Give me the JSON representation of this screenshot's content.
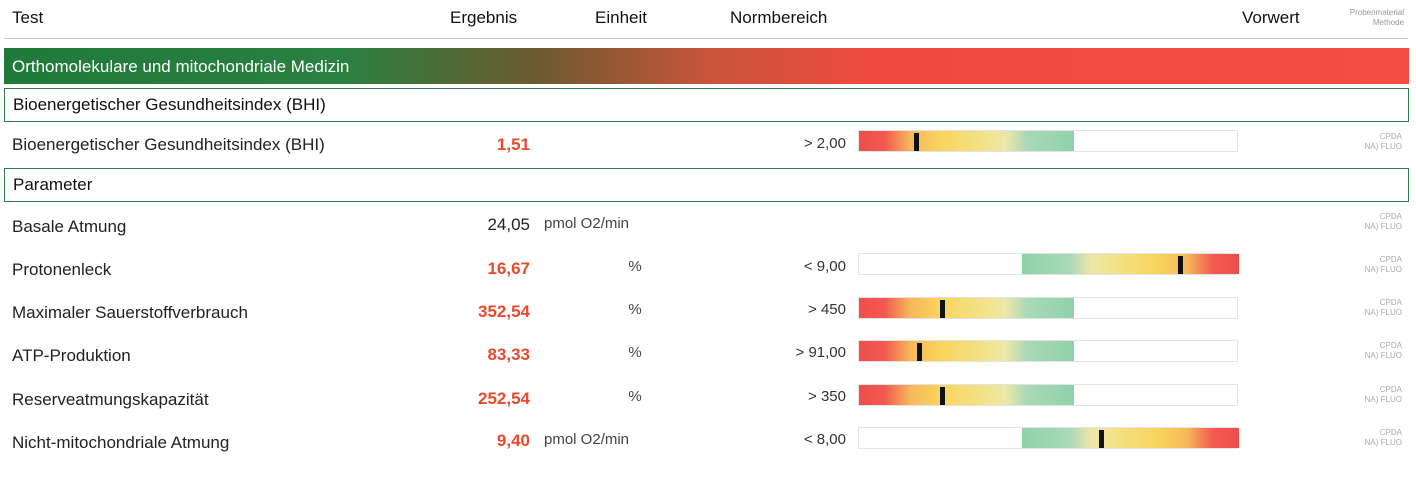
{
  "header": {
    "test": "Test",
    "ergebnis": "Ergebnis",
    "einheit": "Einheit",
    "normbereich": "Normbereich",
    "vorwert": "Vorwert",
    "material_line1": "Probenmaterial",
    "material_line2": "Methode"
  },
  "section": {
    "title": "Orthomolekulare und mitochondriale Medizin"
  },
  "groups": [
    {
      "title": "Bioenergetischer Gesundheitsindex (BHI)"
    },
    {
      "title": "Parameter"
    }
  ],
  "rows": [
    {
      "name": "Bioenergetischer Gesundheitsindex (BHI)",
      "result": "1,51",
      "flag": "high",
      "unit": "",
      "ref": "> 2,00",
      "scale": "low",
      "marker_fraction": 0.15,
      "method1": "CPDA",
      "method2": "NA) FLUO"
    },
    {
      "name": "Basale Atmung",
      "result": "24,05",
      "flag": "normal",
      "unit": "pmol O2/min",
      "ref": "",
      "scale": "none",
      "marker_fraction": null,
      "method1": "CPDA",
      "method2": "NA) FLUO"
    },
    {
      "name": "Protonenleck",
      "result": "16,67",
      "flag": "high",
      "unit": "%",
      "ref": "< 9,00",
      "scale": "high",
      "marker_fraction": 0.85,
      "method1": "CPDA",
      "method2": "NA) FLUO"
    },
    {
      "name": "Maximaler Sauerstoffverbrauch",
      "result": "352,54",
      "flag": "high",
      "unit": "%",
      "ref": "> 450",
      "scale": "low",
      "marker_fraction": 0.22,
      "method1": "CPDA",
      "method2": "NA) FLUO"
    },
    {
      "name": "ATP-Produktion",
      "result": "83,33",
      "flag": "high",
      "unit": "%",
      "ref": "> 91,00",
      "scale": "low",
      "marker_fraction": 0.16,
      "method1": "CPDA",
      "method2": "NA) FLUO"
    },
    {
      "name": "Reserveatmungskapazität",
      "result": "252,54",
      "flag": "high",
      "unit": "%",
      "ref": "> 350",
      "scale": "low",
      "marker_fraction": 0.22,
      "method1": "CPDA",
      "method2": "NA) FLUO"
    },
    {
      "name": "Nicht-mitochondriale Atmung",
      "result": "9,40",
      "flag": "high",
      "unit": "pmol O2/min",
      "ref": "< 8,00",
      "scale": "high",
      "marker_fraction": 0.64,
      "method1": "CPDA",
      "method2": "NA) FLUO"
    }
  ],
  "colors": {
    "section_start": "#1f7a3a",
    "section_end": "#f44d42",
    "flag_high": "#e84a2e",
    "group_border": "#2f7d4e"
  }
}
